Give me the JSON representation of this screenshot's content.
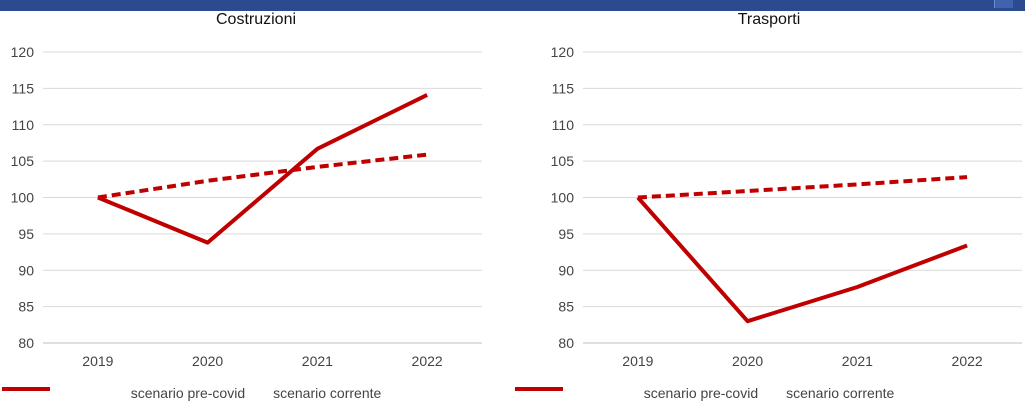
{
  "colors": {
    "header_bar": "#2b4a8f",
    "series": "#c00000",
    "grid": "#d9d9d9",
    "axis": "#bfbfbf"
  },
  "chart_data": [
    {
      "type": "line",
      "title": "Costruzioni",
      "x": [
        "2019",
        "2020",
        "2021",
        "2022"
      ],
      "ylim": [
        80,
        120
      ],
      "yticks": [
        80,
        85,
        90,
        95,
        100,
        105,
        110,
        115,
        120
      ],
      "grid": true,
      "legend_position": "bottom",
      "series": [
        {
          "name": "scenario pre-covid",
          "style": "dashed",
          "values": [
            100,
            102.3,
            104.2,
            105.9
          ]
        },
        {
          "name": "scenario corrente",
          "style": "solid",
          "values": [
            100,
            93.8,
            106.7,
            114.1
          ]
        }
      ]
    },
    {
      "type": "line",
      "title": "Trasporti",
      "x": [
        "2019",
        "2020",
        "2021",
        "2022"
      ],
      "ylim": [
        80,
        120
      ],
      "yticks": [
        80,
        85,
        90,
        95,
        100,
        105,
        110,
        115,
        120
      ],
      "grid": true,
      "legend_position": "bottom",
      "series": [
        {
          "name": "scenario pre-covid",
          "style": "dashed",
          "values": [
            100,
            100.9,
            101.8,
            102.8
          ]
        },
        {
          "name": "scenario corrente",
          "style": "solid",
          "values": [
            100,
            83.0,
            87.7,
            93.4
          ]
        }
      ]
    }
  ]
}
